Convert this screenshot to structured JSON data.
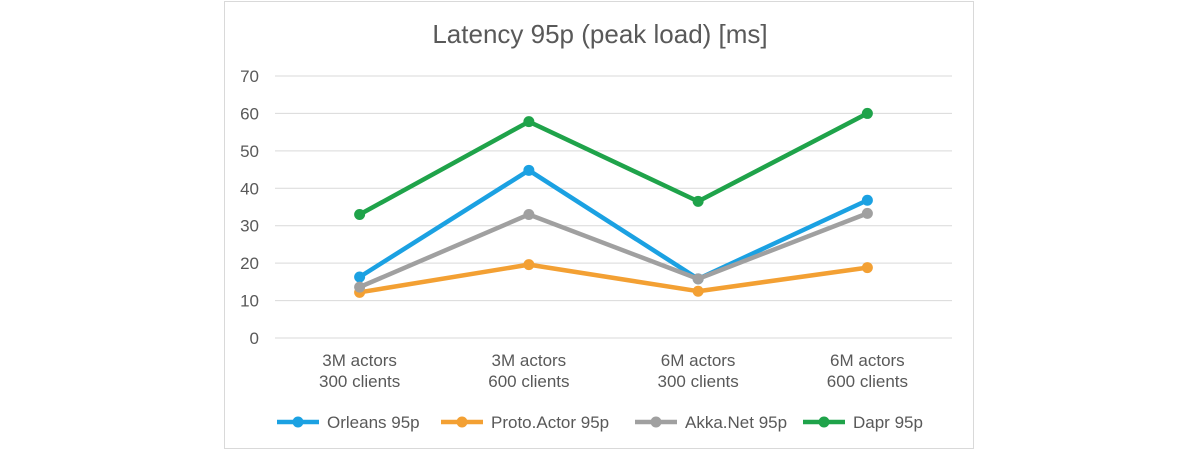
{
  "chart_data": {
    "type": "line",
    "title": "Latency 95p (peak load) [ms]",
    "categories": [
      [
        "3M actors",
        "300 clients"
      ],
      [
        "3M actors",
        "600 clients"
      ],
      [
        "6M actors",
        "300 clients"
      ],
      [
        "6M actors",
        "600 clients"
      ]
    ],
    "ylim": [
      0,
      70
    ],
    "yticks": [
      0,
      10,
      20,
      30,
      40,
      50,
      60,
      70
    ],
    "grid": true,
    "legend_position": "bottom",
    "series": [
      {
        "name": "Orleans 95p",
        "color": "#1ba1e2",
        "values": [
          16.3,
          44.8,
          15.8,
          36.8
        ]
      },
      {
        "name": "Proto.Actor 95p",
        "color": "#f3a033",
        "values": [
          12.2,
          19.6,
          12.5,
          18.8
        ]
      },
      {
        "name": "Akka.Net 95p",
        "color": "#a0a0a0",
        "values": [
          13.6,
          33.0,
          15.8,
          33.3
        ]
      },
      {
        "name": "Dapr 95p",
        "color": "#1fa34a",
        "values": [
          33.0,
          57.8,
          36.5,
          60.0
        ]
      }
    ]
  }
}
